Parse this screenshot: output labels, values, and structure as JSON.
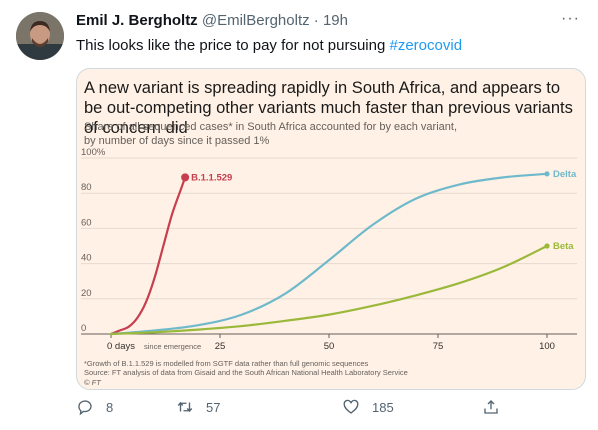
{
  "tweet": {
    "name": "Emil J. Bergholtz",
    "handle": "@EmilBergholtz",
    "separator": "·",
    "time": "19h",
    "text": "This looks like the price to pay for not pursuing ",
    "hashtag": "#zerocovid",
    "more": "···"
  },
  "chart_data": {
    "type": "line",
    "title": "A new variant is spreading rapidly in South Africa, and appears to be out-competing other variants much faster than previous variants of concern did",
    "subtitle_line1": "Share of all sequenced cases* in South Africa accounted for by each variant,",
    "subtitle_line2": "by number of days since it passed 1%",
    "x_ticks": [
      "0 days",
      "25",
      "50",
      "75",
      "100"
    ],
    "x_tick_values": [
      0,
      25,
      50,
      75,
      100
    ],
    "x_zero_suffix": "since emergence",
    "y_ticks": [
      "100%",
      "80",
      "60",
      "40",
      "20",
      "0"
    ],
    "y_tick_values": [
      100,
      80,
      60,
      40,
      20,
      0
    ],
    "xlim": [
      0,
      100
    ],
    "ylim": [
      0,
      100
    ],
    "grid": true,
    "series": [
      {
        "name": "B.1.1.529",
        "color": "#c73e4e",
        "x": [
          0,
          2,
          4,
          6,
          8,
          10,
          12,
          14,
          16,
          17
        ],
        "y": [
          0,
          2,
          4,
          9,
          18,
          32,
          50,
          68,
          82,
          89
        ]
      },
      {
        "name": "Delta",
        "color": "#6fb9cc",
        "x": [
          0,
          10,
          20,
          30,
          40,
          50,
          60,
          70,
          80,
          90,
          100
        ],
        "y": [
          0,
          2,
          5,
          11,
          23,
          42,
          62,
          77,
          85,
          89,
          91
        ]
      },
      {
        "name": "Beta",
        "color": "#9ab93b",
        "x": [
          0,
          10,
          20,
          30,
          40,
          50,
          60,
          70,
          80,
          90,
          100
        ],
        "y": [
          0,
          1,
          2.5,
          4.5,
          7.5,
          11,
          16,
          22,
          29,
          38,
          50
        ]
      }
    ],
    "footnote_line1": "*Growth of B.1.1.529 is modelled from SGTF data rather than full genomic sequences",
    "footnote_line2": "Source: FT analysis of data from Gisaid and the South African National Health Laboratory Service",
    "credit": "© FT"
  },
  "actions": {
    "reply_count": "8",
    "retweet_count": "57",
    "like_count": "185"
  }
}
